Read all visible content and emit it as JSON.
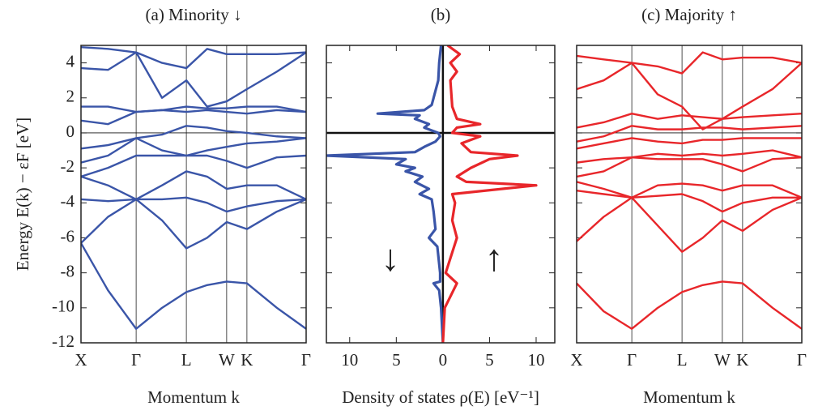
{
  "chart_data": [
    {
      "type": "line",
      "title": "(a) Minority ↓",
      "xlabel": "Momentum  k",
      "ylabel": "Energy  E(k) − εF [eV]",
      "show_ytick_labels": true,
      "xlim": [
        0,
        1
      ],
      "ylim": [
        -12,
        5
      ],
      "xticks": [
        {
          "value": 0,
          "label": "X"
        },
        {
          "value": 0.245,
          "label": "Γ"
        },
        {
          "value": 0.468,
          "label": "L"
        },
        {
          "value": 0.647,
          "label": "W"
        },
        {
          "value": 0.737,
          "label": "K"
        },
        {
          "value": 1,
          "label": "Γ"
        }
      ],
      "yticks": [
        -12,
        -10,
        -8,
        -6,
        -4,
        -2,
        0,
        2,
        4
      ],
      "grid": true,
      "zero_line": true,
      "x": [
        0,
        0.12,
        0.245,
        0.36,
        0.468,
        0.56,
        0.647,
        0.737,
        0.87,
        1
      ],
      "series": [
        {
          "color": "#3a55a8",
          "values": [
            -6.3,
            -9.0,
            -11.2,
            -10.0,
            -9.1,
            -8.7,
            -8.5,
            -8.6,
            -10.0,
            -11.2
          ]
        },
        {
          "color": "#3a55a8",
          "values": [
            -6.3,
            -4.8,
            -3.8,
            -5.0,
            -6.6,
            -6.0,
            -5.1,
            -5.5,
            -4.5,
            -3.8
          ]
        },
        {
          "color": "#3a55a8",
          "values": [
            -3.8,
            -3.9,
            -3.8,
            -3.8,
            -3.7,
            -4.0,
            -4.5,
            -4.2,
            -3.9,
            -3.8
          ]
        },
        {
          "color": "#3a55a8",
          "values": [
            -2.5,
            -3.0,
            -3.8,
            -3.0,
            -2.2,
            -2.5,
            -3.2,
            -3.0,
            -3.0,
            -3.8
          ]
        },
        {
          "color": "#3a55a8",
          "values": [
            -2.5,
            -2.0,
            -1.3,
            -1.3,
            -1.3,
            -1.3,
            -1.6,
            -2.0,
            -1.4,
            -1.3
          ]
        },
        {
          "color": "#3a55a8",
          "values": [
            -1.7,
            -1.3,
            -0.3,
            -1.0,
            -1.3,
            -1.0,
            -0.8,
            -0.6,
            -0.5,
            -0.3
          ]
        },
        {
          "color": "#3a55a8",
          "values": [
            -0.9,
            -0.7,
            -0.3,
            -0.1,
            0.4,
            0.3,
            0.1,
            0.0,
            -0.2,
            -0.3
          ]
        },
        {
          "color": "#3a55a8",
          "values": [
            0.7,
            0.5,
            1.2,
            1.3,
            1.2,
            1.3,
            1.2,
            1.1,
            1.3,
            1.2
          ]
        },
        {
          "color": "#3a55a8",
          "values": [
            1.5,
            1.5,
            1.2,
            1.3,
            1.5,
            1.4,
            1.4,
            1.5,
            1.5,
            1.2
          ]
        },
        {
          "color": "#3a55a8",
          "values": [
            3.7,
            3.6,
            4.6,
            2.0,
            3.0,
            1.5,
            1.8,
            2.5,
            3.5,
            4.6
          ]
        },
        {
          "color": "#3a55a8",
          "values": [
            4.9,
            4.8,
            4.6,
            4.0,
            3.7,
            4.8,
            4.5,
            4.5,
            4.5,
            4.6
          ]
        }
      ]
    },
    {
      "type": "line",
      "title": "(b)",
      "xlabel": "Density of states  ρ(E) [eV⁻¹]",
      "show_ytick_labels": false,
      "xlim": [
        -12.5,
        12
      ],
      "ylim": [
        -12,
        5
      ],
      "xticks": [
        {
          "value": -10,
          "label": "10"
        },
        {
          "value": -5,
          "label": "5"
        },
        0,
        5,
        10
      ],
      "yticks": [
        -12,
        -10,
        -8,
        -6,
        -4,
        -2,
        0,
        2,
        4
      ],
      "grid": false,
      "zero_line": true,
      "zero_line_x": true,
      "annotations": [
        "↓",
        "↑"
      ],
      "series": [
        {
          "color": "#3a55a8",
          "x": [
            0,
            -0.2,
            -0.4,
            -1,
            -0.3,
            -0.3,
            -0.6,
            -1.5,
            -0.8,
            -1,
            -1.2,
            -2.5,
            -1.5,
            -3,
            -2.2,
            -4,
            -3,
            -5,
            -4,
            -12.5,
            -3,
            -2,
            -0.8,
            -0.3,
            -0.5,
            -2,
            -1.5,
            -3,
            -2.5,
            -7,
            -2,
            -1.2,
            -1,
            -0.5,
            -0.4,
            -0.2
          ],
          "y": [
            -12,
            -10,
            -9,
            -8.6,
            -8.5,
            -8,
            -6.5,
            -6,
            -5.5,
            -4.5,
            -3.8,
            -3.5,
            -3.2,
            -2.8,
            -2.5,
            -2.2,
            -2,
            -1.8,
            -1.5,
            -1.3,
            -1.1,
            -0.8,
            -0.5,
            -0.2,
            0,
            0.3,
            0.5,
            0.8,
            1,
            1.1,
            1.3,
            1.6,
            2,
            3,
            4,
            5
          ]
        },
        {
          "color": "#e8262a",
          "x": [
            0,
            0.2,
            1.5,
            0.3,
            1.5,
            1,
            1.3,
            1,
            10,
            2.5,
            1.5,
            3,
            5,
            8,
            3,
            2,
            4,
            1,
            1.5,
            4,
            1.5,
            1,
            0.8,
            1.5,
            0.8,
            1.8,
            0.5
          ],
          "y": [
            -12,
            -10,
            -8.6,
            -8,
            -6,
            -5,
            -4,
            -3.5,
            -3,
            -2.8,
            -2.5,
            -2,
            -1.5,
            -1.3,
            -1.1,
            -0.6,
            -0.2,
            0,
            0.3,
            0.5,
            0.8,
            1.5,
            3,
            3.5,
            4,
            4.5,
            5
          ]
        }
      ]
    },
    {
      "type": "line",
      "title": "(c) Majority ↑",
      "xlabel": "Momentum  k",
      "show_ytick_labels": false,
      "xlim": [
        0,
        1
      ],
      "ylim": [
        -12,
        5
      ],
      "xticks": [
        {
          "value": 0,
          "label": "X"
        },
        {
          "value": 0.245,
          "label": "Γ"
        },
        {
          "value": 0.468,
          "label": "L"
        },
        {
          "value": 0.647,
          "label": "W"
        },
        {
          "value": 0.737,
          "label": "K"
        },
        {
          "value": 1,
          "label": "Γ"
        }
      ],
      "yticks": [
        -12,
        -10,
        -8,
        -6,
        -4,
        -2,
        0,
        2,
        4
      ],
      "grid": true,
      "zero_line": true,
      "x": [
        0,
        0.12,
        0.245,
        0.36,
        0.468,
        0.56,
        0.647,
        0.737,
        0.87,
        1
      ],
      "series": [
        {
          "color": "#e8262a",
          "values": [
            -8.6,
            -10.2,
            -11.2,
            -10.0,
            -9.1,
            -8.7,
            -8.5,
            -8.6,
            -10.0,
            -11.2
          ]
        },
        {
          "color": "#e8262a",
          "values": [
            -6.2,
            -4.8,
            -3.7,
            -5.3,
            -6.8,
            -6.0,
            -5.0,
            -5.6,
            -4.4,
            -3.7
          ]
        },
        {
          "color": "#e8262a",
          "values": [
            -3.3,
            -3.5,
            -3.7,
            -3.6,
            -3.5,
            -3.9,
            -4.5,
            -4.0,
            -3.7,
            -3.7
          ]
        },
        {
          "color": "#e8262a",
          "values": [
            -2.8,
            -3.2,
            -3.7,
            -3.0,
            -2.9,
            -3.0,
            -3.3,
            -3.0,
            -3.0,
            -3.7
          ]
        },
        {
          "color": "#e8262a",
          "values": [
            -2.5,
            -2.2,
            -1.4,
            -1.5,
            -1.5,
            -1.5,
            -1.8,
            -2.2,
            -1.5,
            -1.4
          ]
        },
        {
          "color": "#e8262a",
          "values": [
            -1.7,
            -1.5,
            -1.4,
            -1.2,
            -1.3,
            -1.2,
            -1.3,
            -1.2,
            -1.0,
            -1.4
          ]
        },
        {
          "color": "#e8262a",
          "values": [
            -0.9,
            -0.6,
            -0.3,
            -0.5,
            -0.6,
            -0.4,
            -0.4,
            -0.3,
            -0.3,
            -0.3
          ]
        },
        {
          "color": "#e8262a",
          "values": [
            -0.5,
            -0.2,
            0.4,
            0.2,
            0.2,
            0.3,
            0.3,
            0.2,
            0.3,
            0.4
          ]
        },
        {
          "color": "#e8262a",
          "values": [
            0.3,
            0.6,
            1.1,
            0.8,
            1.0,
            0.9,
            0.8,
            0.9,
            1.0,
            1.1
          ]
        },
        {
          "color": "#e8262a",
          "values": [
            2.5,
            3.0,
            4.0,
            2.2,
            1.5,
            0.2,
            0.8,
            1.5,
            2.5,
            4.0
          ]
        },
        {
          "color": "#e8262a",
          "values": [
            4.4,
            4.2,
            4.0,
            3.8,
            3.4,
            4.6,
            4.2,
            4.3,
            4.3,
            4.0
          ]
        }
      ]
    }
  ]
}
